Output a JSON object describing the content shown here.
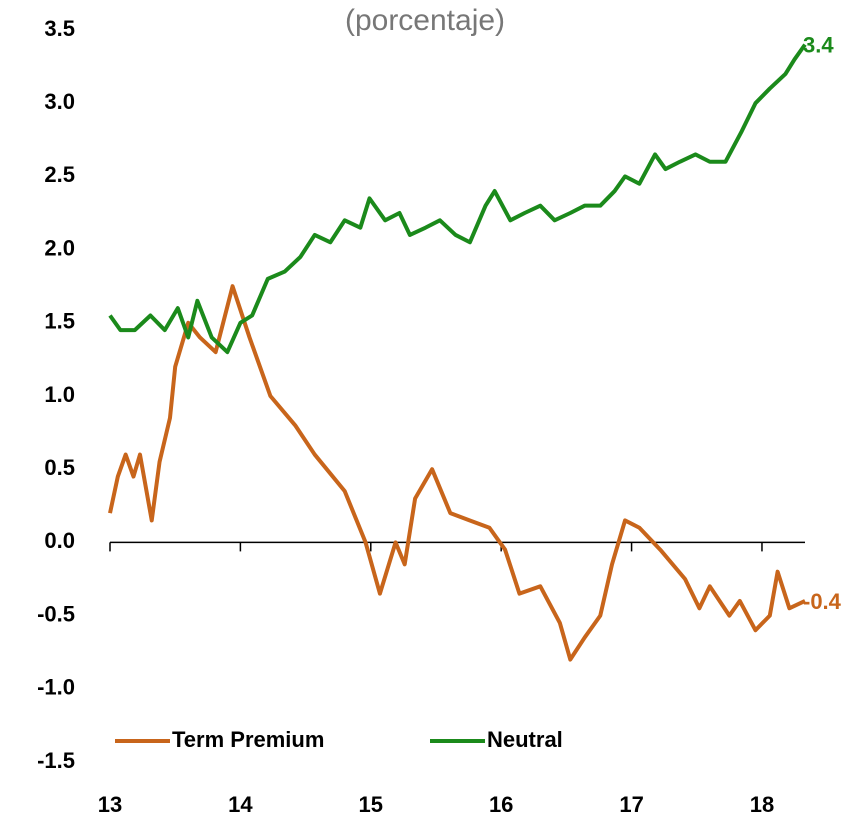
{
  "chart_data": {
    "type": "line",
    "title": "(porcentaje)",
    "xlim": [
      13,
      18.33
    ],
    "xticks": [
      13,
      14,
      15,
      16,
      17,
      18
    ],
    "ylim": [
      -1.5,
      3.5
    ],
    "yticks": [
      {
        "value": 3.5,
        "label": "3.5"
      },
      {
        "value": 3,
        "label": "3.0"
      },
      {
        "value": 2.5,
        "label": "2.5"
      },
      {
        "value": 2,
        "label": "2.0"
      },
      {
        "value": 1.5,
        "label": "1.5"
      },
      {
        "value": 1,
        "label": "1.0"
      },
      {
        "value": 0.5,
        "label": "0.5"
      },
      {
        "value": 0,
        "label": "0.0"
      },
      {
        "value": -0.5,
        "label": "-0.5"
      },
      {
        "value": -1,
        "label": "-1.0"
      },
      {
        "value": -1.5,
        "label": "-1.5"
      }
    ],
    "series": [
      {
        "name": "Term Premium",
        "color": "#c8651b",
        "end_label": "-0.4",
        "x": [
          13.0,
          13.06,
          13.12,
          13.18,
          13.23,
          13.28,
          13.32,
          13.38,
          13.46,
          13.5,
          13.6,
          13.69,
          13.81,
          13.94,
          14.07,
          14.23,
          14.42,
          14.57,
          14.8,
          14.96,
          15.07,
          15.19,
          15.26,
          15.34,
          15.47,
          15.61,
          15.76,
          15.91,
          16.03,
          16.14,
          16.3,
          16.45,
          16.53,
          16.64,
          16.76,
          16.85,
          16.95,
          17.06,
          17.22,
          17.41,
          17.52,
          17.6,
          17.75,
          17.83,
          17.95,
          18.06,
          18.12,
          18.21,
          18.33
        ],
        "values": [
          0.2,
          0.45,
          0.6,
          0.45,
          0.6,
          0.35,
          0.15,
          0.55,
          0.85,
          1.2,
          1.5,
          1.4,
          1.3,
          1.75,
          1.4,
          1.0,
          0.8,
          0.6,
          0.35,
          0.0,
          -0.35,
          0.0,
          -0.15,
          0.3,
          0.5,
          0.2,
          0.15,
          0.1,
          -0.05,
          -0.35,
          -0.3,
          -0.55,
          -0.8,
          -0.65,
          -0.5,
          -0.15,
          0.15,
          0.1,
          -0.05,
          -0.25,
          -0.45,
          -0.3,
          -0.5,
          -0.4,
          -0.6,
          -0.5,
          -0.2,
          -0.45,
          -0.4
        ]
      },
      {
        "name": "Neutral",
        "color": "#1b8a1b",
        "end_label": "3.4",
        "x": [
          13.0,
          13.08,
          13.19,
          13.31,
          13.42,
          13.52,
          13.6,
          13.67,
          13.78,
          13.9,
          14.0,
          14.09,
          14.21,
          14.34,
          14.46,
          14.57,
          14.69,
          14.8,
          14.92,
          14.99,
          15.11,
          15.22,
          15.3,
          15.42,
          15.53,
          15.65,
          15.76,
          15.88,
          15.95,
          16.07,
          16.18,
          16.3,
          16.41,
          16.53,
          16.64,
          16.76,
          16.87,
          16.95,
          17.06,
          17.18,
          17.26,
          17.37,
          17.49,
          17.6,
          17.72,
          17.84,
          17.95,
          18.06,
          18.18,
          18.25,
          18.33
        ],
        "values": [
          1.55,
          1.45,
          1.45,
          1.55,
          1.45,
          1.6,
          1.4,
          1.65,
          1.4,
          1.3,
          1.5,
          1.55,
          1.8,
          1.85,
          1.95,
          2.1,
          2.05,
          2.2,
          2.15,
          2.35,
          2.2,
          2.25,
          2.1,
          2.15,
          2.2,
          2.1,
          2.05,
          2.3,
          2.4,
          2.2,
          2.25,
          2.3,
          2.2,
          2.25,
          2.3,
          2.3,
          2.4,
          2.5,
          2.45,
          2.65,
          2.55,
          2.6,
          2.65,
          2.6,
          2.6,
          2.8,
          3.0,
          3.1,
          3.2,
          3.3,
          3.4
        ]
      }
    ]
  }
}
